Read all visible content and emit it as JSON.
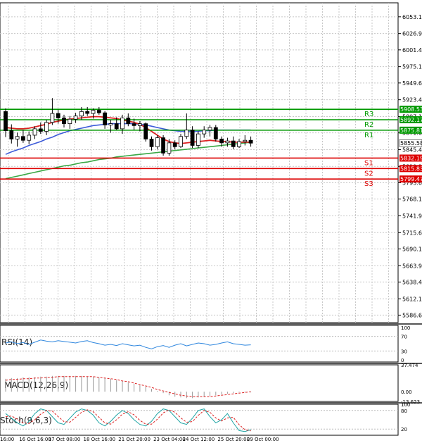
{
  "chart_data": {
    "type": "candlestick",
    "main": {
      "ylim": [
        5575,
        6075
      ],
      "price_ticks": [
        "6053.15",
        "6026.90",
        "6001.40",
        "5975.15",
        "5949.65",
        "5923.40",
        "5897.15",
        "5871.65",
        "5845.40",
        "5819.15",
        "5793.65",
        "5768.15",
        "5741.90",
        "5715.65",
        "5690.15",
        "5663.90",
        "5638.40",
        "5612.15",
        "5586.65"
      ],
      "price_tick_values": [
        6053.15,
        6026.9,
        6001.4,
        5975.15,
        5949.65,
        5923.4,
        5897.15,
        5871.65,
        5845.4,
        5819.15,
        5793.65,
        5768.15,
        5741.9,
        5715.65,
        5690.15,
        5663.9,
        5638.4,
        5612.15,
        5586.65
      ],
      "last_price": {
        "label": "5855.58",
        "value": 5855.58
      },
      "levels": [
        {
          "name": "R3",
          "label": "5908.53",
          "value": 5908.53,
          "color": "#009900"
        },
        {
          "name": "R2",
          "label": "5892.17",
          "value": 5892.17,
          "color": "#009900"
        },
        {
          "name": "R1",
          "label": "5875.81",
          "value": 5875.81,
          "color": "#009900"
        },
        {
          "name": "S1",
          "label": "5832.19",
          "value": 5832.19,
          "color": "#dd0000"
        },
        {
          "name": "S2",
          "label": "5815.83",
          "value": 5815.83,
          "color": "#dd0000"
        },
        {
          "name": "S3",
          "label": "5799.47",
          "value": 5799.47,
          "color": "#dd0000"
        }
      ],
      "candles": [
        [
          5905,
          5910,
          5865,
          5875
        ],
        [
          5875,
          5885,
          5855,
          5862
        ],
        [
          5862,
          5872,
          5850,
          5866
        ],
        [
          5866,
          5876,
          5856,
          5860
        ],
        [
          5860,
          5874,
          5854,
          5868
        ],
        [
          5868,
          5882,
          5862,
          5878
        ],
        [
          5878,
          5888,
          5870,
          5874
        ],
        [
          5874,
          5892,
          5868,
          5888
        ],
        [
          5888,
          5926,
          5884,
          5902
        ],
        [
          5902,
          5908,
          5886,
          5895
        ],
        [
          5895,
          5900,
          5880,
          5886
        ],
        [
          5886,
          5898,
          5878,
          5893
        ],
        [
          5893,
          5903,
          5887,
          5898
        ],
        [
          5898,
          5912,
          5892,
          5905
        ],
        [
          5905,
          5912,
          5898,
          5902
        ],
        [
          5902,
          5910,
          5894,
          5907
        ],
        [
          5907,
          5912,
          5900,
          5903
        ],
        [
          5903,
          5906,
          5878,
          5884
        ],
        [
          5884,
          5892,
          5872,
          5886
        ],
        [
          5886,
          5896,
          5876,
          5878
        ],
        [
          5878,
          5900,
          5870,
          5895
        ],
        [
          5895,
          5902,
          5882,
          5886
        ],
        [
          5886,
          5894,
          5876,
          5883
        ],
        [
          5883,
          5890,
          5874,
          5886
        ],
        [
          5886,
          5888,
          5858,
          5862
        ],
        [
          5862,
          5866,
          5844,
          5850
        ],
        [
          5850,
          5868,
          5846,
          5864
        ],
        [
          5864,
          5868,
          5836,
          5840
        ],
        [
          5840,
          5862,
          5836,
          5856
        ],
        [
          5856,
          5860,
          5846,
          5850
        ],
        [
          5850,
          5870,
          5848,
          5866
        ],
        [
          5866,
          5902,
          5862,
          5876
        ],
        [
          5876,
          5882,
          5848,
          5852
        ],
        [
          5852,
          5874,
          5848,
          5870
        ],
        [
          5870,
          5882,
          5864,
          5876
        ],
        [
          5876,
          5884,
          5866,
          5880
        ],
        [
          5880,
          5884,
          5858,
          5862
        ],
        [
          5862,
          5866,
          5850,
          5856
        ],
        [
          5856,
          5864,
          5850,
          5859
        ],
        [
          5859,
          5866,
          5846,
          5850
        ],
        [
          5850,
          5862,
          5848,
          5858
        ],
        [
          5858,
          5868,
          5852,
          5860
        ],
        [
          5860,
          5866,
          5850,
          5855.58
        ]
      ],
      "ma_red": [
        5880,
        5879,
        5878,
        5878,
        5879,
        5881,
        5883,
        5885,
        5888,
        5890,
        5892,
        5893,
        5894,
        5895,
        5896,
        5897,
        5897,
        5896,
        5895,
        5894,
        5892,
        5890,
        5888,
        5885,
        5880,
        5874,
        5868,
        5862,
        5858,
        5856,
        5855,
        5856,
        5857,
        5858,
        5859,
        5860,
        5859,
        5858,
        5858,
        5857,
        5857,
        5857,
        5857
      ],
      "ma_blue": [
        5838,
        5842,
        5845,
        5848,
        5852,
        5855,
        5858,
        5862,
        5865,
        5869,
        5872,
        5875,
        5877,
        5879,
        5881,
        5883,
        5884,
        5885,
        5886,
        5886,
        5886,
        5886,
        5886,
        5885,
        5884,
        5882,
        5880,
        5878,
        5876,
        5875,
        5874,
        5874,
        5874,
        5874,
        5875,
        5875,
        5876,
        5876,
        5876,
        5876,
        5876,
        5876,
        5876
      ],
      "ma_green": [
        5800,
        5802,
        5804,
        5806,
        5808,
        5810,
        5812,
        5814,
        5816,
        5818,
        5820,
        5821,
        5823,
        5825,
        5826,
        5828,
        5830,
        5831,
        5832,
        5834,
        5835,
        5836,
        5837,
        5838,
        5839,
        5840,
        5841,
        5842,
        5843,
        5844,
        5845,
        5846,
        5847,
        5848,
        5849,
        5850,
        5851,
        5852,
        5853,
        5854,
        5855,
        5856,
        5857
      ]
    },
    "x_labels": [
      "16:00",
      "16 Oct 16:00",
      "17 Oct 08:00",
      "18 Oct 16:00",
      "21 Oct 20:00",
      "23 Oct 04:00",
      "24 Oct 12:00",
      "25 Oct 20:00",
      "29 Oct 00:00"
    ],
    "x_label_index": [
      0,
      4,
      9,
      15,
      21,
      27,
      32,
      38,
      43
    ],
    "rsi": {
      "label": "RSI(14)",
      "ticks": [
        "100",
        "70",
        "30",
        "0"
      ],
      "tick_values": [
        100,
        70,
        30,
        0
      ],
      "values": [
        52,
        55,
        50,
        53,
        48,
        54,
        60,
        57,
        55,
        58,
        56,
        54,
        52,
        56,
        58,
        53,
        50,
        46,
        48,
        45,
        50,
        47,
        44,
        46,
        40,
        36,
        42,
        45,
        40,
        46,
        50,
        44,
        48,
        52,
        50,
        46,
        48,
        52,
        55,
        50,
        48,
        46,
        47
      ]
    },
    "macd": {
      "label": "MACD(12,26,9)",
      "ticks": [
        "37.474",
        "0.00",
        "-13.623"
      ],
      "tick_values": [
        37.474,
        0,
        -13.623
      ],
      "hist": [
        18,
        19,
        19,
        20,
        20,
        20,
        21,
        21,
        22,
        22,
        22,
        22,
        22,
        22,
        21,
        21,
        20,
        19,
        18,
        16,
        15,
        13,
        11,
        9,
        7,
        4,
        1,
        -2,
        -5,
        -7,
        -8,
        -9,
        -9,
        -8,
        -7,
        -6,
        -5,
        -4,
        -3,
        -2,
        -1,
        -1,
        -1
      ],
      "signal": [
        16,
        17,
        17,
        18,
        18,
        19,
        19,
        20,
        20,
        21,
        21,
        21,
        21,
        21,
        21,
        21,
        20,
        19,
        18,
        17,
        15,
        14,
        12,
        10,
        8,
        6,
        3,
        1,
        -1,
        -3,
        -5,
        -6,
        -7,
        -7,
        -7,
        -7,
        -6,
        -5,
        -4,
        -3,
        -2,
        -1,
        0
      ]
    },
    "stoch": {
      "label": "Stoch(9,6,3)",
      "ticks": [
        "100",
        "80",
        "20"
      ],
      "tick_values": [
        100,
        80,
        20
      ],
      "k": [
        70,
        55,
        40,
        30,
        45,
        70,
        85,
        80,
        60,
        40,
        35,
        55,
        75,
        85,
        80,
        65,
        40,
        30,
        45,
        65,
        80,
        70,
        50,
        35,
        30,
        45,
        70,
        85,
        80,
        60,
        40,
        35,
        55,
        80,
        85,
        60,
        40,
        50,
        70,
        40,
        15,
        12,
        18
      ],
      "d": [
        60,
        62,
        52,
        40,
        38,
        50,
        68,
        80,
        78,
        60,
        44,
        42,
        58,
        74,
        82,
        76,
        58,
        40,
        36,
        50,
        68,
        76,
        66,
        48,
        36,
        36,
        52,
        72,
        82,
        74,
        56,
        42,
        44,
        64,
        80,
        74,
        56,
        46,
        56,
        58,
        34,
        18,
        14
      ]
    }
  }
}
